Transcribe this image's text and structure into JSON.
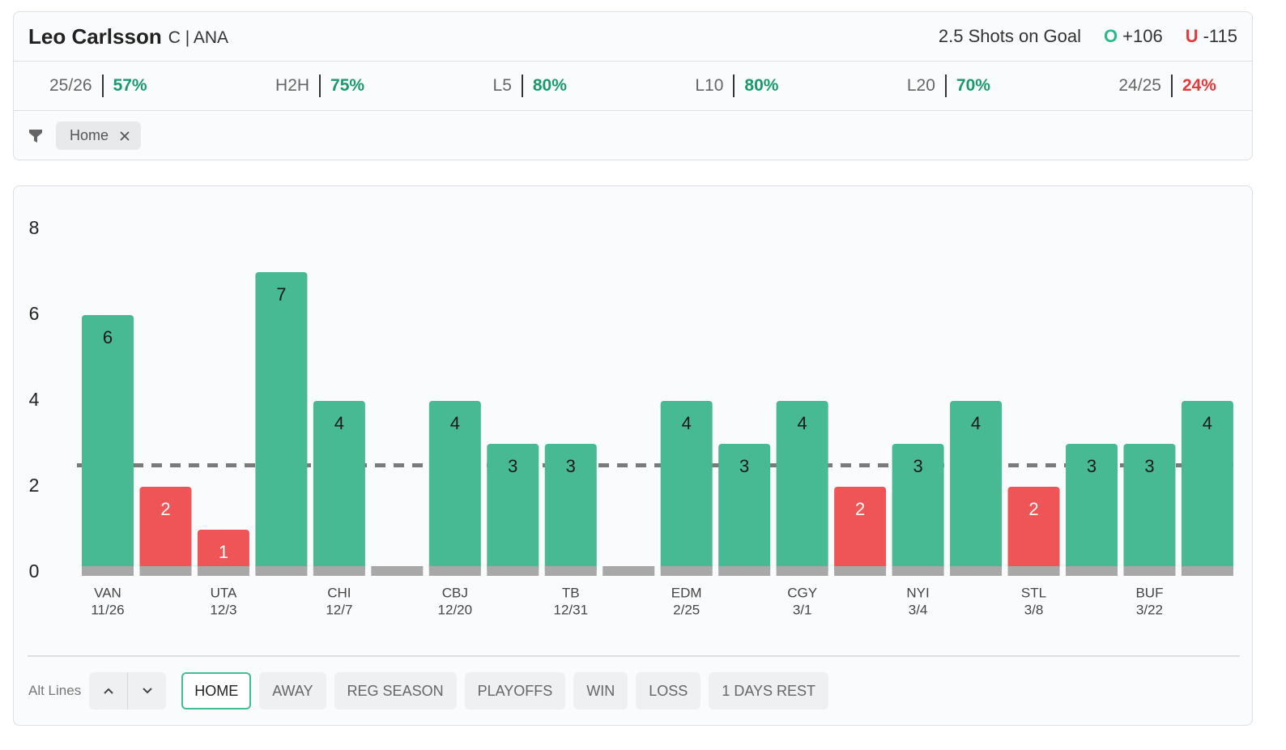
{
  "header": {
    "player": "Leo Carlsson",
    "position": "C | ANA",
    "prop": "2.5 Shots on Goal",
    "over": {
      "label": "O",
      "odds": "+106",
      "color": "#2fb88a"
    },
    "under": {
      "label": "U",
      "odds": "-115",
      "color": "#e5383b"
    }
  },
  "stats": [
    {
      "label": "25/26",
      "value": "57%",
      "color": "#1a9a6c"
    },
    {
      "label": "H2H",
      "value": "75%",
      "color": "#1a9a6c"
    },
    {
      "label": "L5",
      "value": "80%",
      "color": "#1a9a6c"
    },
    {
      "label": "L10",
      "value": "80%",
      "color": "#1a9a6c"
    },
    {
      "label": "L20",
      "value": "70%",
      "color": "#1a9a6c"
    },
    {
      "label": "24/25",
      "value": "24%",
      "color": "#e5383b"
    }
  ],
  "filters": {
    "active": [
      "Home"
    ]
  },
  "chart_data": {
    "type": "bar",
    "categories": [
      "VAN",
      null,
      "UTA",
      null,
      "CHI",
      null,
      "CBJ",
      null,
      "TB",
      null,
      "EDM",
      null,
      "CGY",
      null,
      "NYI",
      null,
      "STL",
      null,
      "BUF",
      null
    ],
    "dates": [
      "11/26",
      null,
      "12/3",
      null,
      "12/7",
      null,
      "12/20",
      null,
      "12/31",
      null,
      "2/25",
      null,
      "3/1",
      null,
      "3/4",
      null,
      "3/8",
      null,
      "3/22",
      null
    ],
    "values": [
      6,
      2,
      1,
      7,
      4,
      0,
      4,
      3,
      3,
      0,
      4,
      3,
      4,
      2,
      3,
      4,
      2,
      3,
      3,
      4
    ],
    "threshold": 2.5,
    "over_color": "#47b993",
    "under_color": "#ef5557",
    "base_color": "#a8a8a8",
    "ylim": [
      0,
      8
    ],
    "yticks": [
      0,
      2,
      4,
      6,
      8
    ],
    "grid": false
  },
  "controls": {
    "label": "Alt Lines",
    "chips": [
      "HOME",
      "AWAY",
      "REG SEASON",
      "PLAYOFFS",
      "WIN",
      "LOSS",
      "1 DAYS REST"
    ],
    "selected": 0
  }
}
